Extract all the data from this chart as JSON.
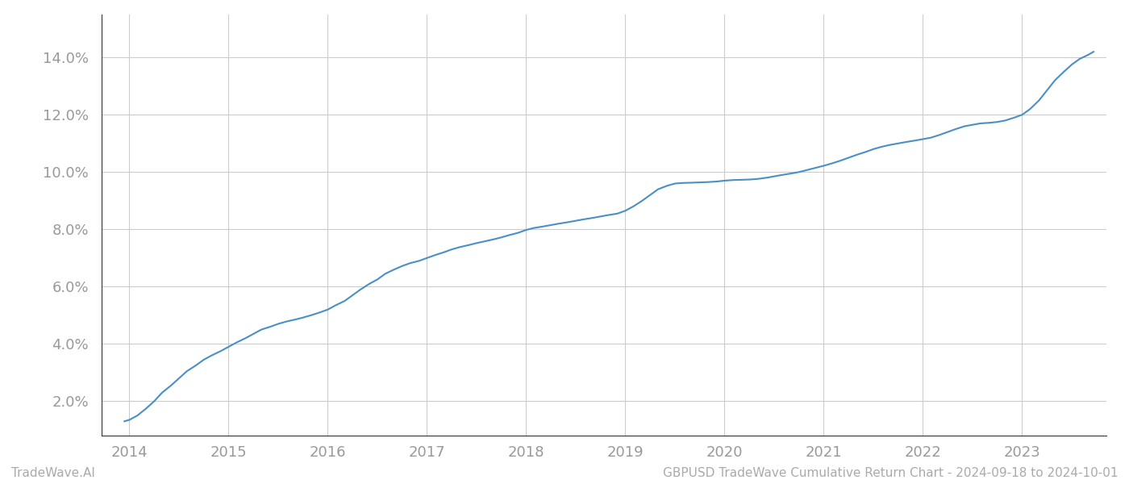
{
  "x_values": [
    2013.95,
    2014.0,
    2014.08,
    2014.17,
    2014.25,
    2014.33,
    2014.42,
    2014.5,
    2014.58,
    2014.67,
    2014.75,
    2014.83,
    2014.92,
    2015.0,
    2015.08,
    2015.17,
    2015.25,
    2015.33,
    2015.42,
    2015.5,
    2015.58,
    2015.67,
    2015.75,
    2015.83,
    2015.92,
    2016.0,
    2016.08,
    2016.17,
    2016.25,
    2016.33,
    2016.42,
    2016.5,
    2016.58,
    2016.67,
    2016.75,
    2016.83,
    2016.92,
    2017.0,
    2017.08,
    2017.17,
    2017.25,
    2017.33,
    2017.42,
    2017.5,
    2017.58,
    2017.67,
    2017.75,
    2017.83,
    2017.92,
    2018.0,
    2018.08,
    2018.17,
    2018.25,
    2018.33,
    2018.42,
    2018.5,
    2018.58,
    2018.67,
    2018.75,
    2018.83,
    2018.92,
    2019.0,
    2019.08,
    2019.17,
    2019.25,
    2019.33,
    2019.42,
    2019.5,
    2019.58,
    2019.67,
    2019.75,
    2019.83,
    2019.92,
    2020.0,
    2020.08,
    2020.17,
    2020.25,
    2020.33,
    2020.42,
    2020.5,
    2020.58,
    2020.67,
    2020.75,
    2020.83,
    2020.92,
    2021.0,
    2021.08,
    2021.17,
    2021.25,
    2021.33,
    2021.42,
    2021.5,
    2021.58,
    2021.67,
    2021.75,
    2021.83,
    2021.92,
    2022.0,
    2022.08,
    2022.17,
    2022.25,
    2022.33,
    2022.42,
    2022.5,
    2022.58,
    2022.67,
    2022.75,
    2022.83,
    2022.92,
    2023.0,
    2023.08,
    2023.17,
    2023.25,
    2023.33,
    2023.42,
    2023.5,
    2023.58,
    2023.67,
    2023.72
  ],
  "y_values": [
    1.3,
    1.35,
    1.5,
    1.75,
    2.0,
    2.3,
    2.55,
    2.8,
    3.05,
    3.25,
    3.45,
    3.6,
    3.75,
    3.9,
    4.05,
    4.2,
    4.35,
    4.5,
    4.6,
    4.7,
    4.78,
    4.85,
    4.92,
    5.0,
    5.1,
    5.2,
    5.35,
    5.5,
    5.7,
    5.9,
    6.1,
    6.25,
    6.45,
    6.6,
    6.72,
    6.82,
    6.9,
    7.0,
    7.1,
    7.2,
    7.3,
    7.38,
    7.45,
    7.52,
    7.58,
    7.65,
    7.72,
    7.8,
    7.88,
    7.98,
    8.05,
    8.1,
    8.15,
    8.2,
    8.25,
    8.3,
    8.35,
    8.4,
    8.45,
    8.5,
    8.55,
    8.65,
    8.8,
    9.0,
    9.2,
    9.4,
    9.52,
    9.6,
    9.62,
    9.63,
    9.64,
    9.65,
    9.67,
    9.7,
    9.72,
    9.73,
    9.74,
    9.76,
    9.8,
    9.85,
    9.9,
    9.95,
    10.0,
    10.07,
    10.15,
    10.22,
    10.3,
    10.4,
    10.5,
    10.6,
    10.7,
    10.8,
    10.88,
    10.95,
    11.0,
    11.05,
    11.1,
    11.15,
    11.2,
    11.3,
    11.4,
    11.5,
    11.6,
    11.65,
    11.7,
    11.72,
    11.75,
    11.8,
    11.9,
    12.0,
    12.2,
    12.5,
    12.85,
    13.2,
    13.5,
    13.75,
    13.95,
    14.1,
    14.2
  ],
  "line_color": "#4a90c4",
  "line_width": 1.5,
  "bg_color": "#ffffff",
  "grid_color": "#cccccc",
  "tick_label_color": "#999999",
  "left_spine_color": "#333333",
  "bottom_spine_color": "#333333",
  "footer_left": "TradeWave.AI",
  "footer_right": "GBPUSD TradeWave Cumulative Return Chart - 2024-09-18 to 2024-10-01",
  "footer_color": "#aaaaaa",
  "footer_fontsize": 11,
  "xlim": [
    2013.72,
    2023.85
  ],
  "ylim": [
    0.8,
    15.5
  ],
  "yticks": [
    2.0,
    4.0,
    6.0,
    8.0,
    10.0,
    12.0,
    14.0
  ],
  "xticks": [
    2014,
    2015,
    2016,
    2017,
    2018,
    2019,
    2020,
    2021,
    2022,
    2023
  ],
  "tick_fontsize": 13
}
